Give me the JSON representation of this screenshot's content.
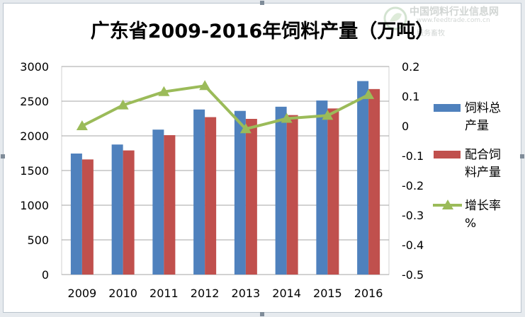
{
  "watermark": {
    "site_name": "中国饲料行业信息网",
    "url": "www.feedtrade.com.cn",
    "tagline": "服务畜牧",
    "logo": "leaf-logo"
  },
  "chart_data": {
    "type": "bar",
    "title": "广东省2009-2016年饲料产量（万吨）",
    "categories": [
      "2009",
      "2010",
      "2011",
      "2012",
      "2013",
      "2014",
      "2015",
      "2016"
    ],
    "series": [
      {
        "name": "饲料总产量",
        "type": "bar",
        "axis": "left",
        "color": "#4f81bd",
        "values": [
          1745,
          1875,
          2090,
          2380,
          2360,
          2420,
          2510,
          2790
        ]
      },
      {
        "name": "配合饲料产量",
        "type": "bar",
        "axis": "left",
        "color": "#c0504d",
        "values": [
          1660,
          1790,
          2010,
          2270,
          2245,
          2300,
          2395,
          2675
        ]
      },
      {
        "name": "增长率%",
        "type": "line",
        "axis": "right",
        "color": "#9bbb59",
        "marker": "triangle",
        "values": [
          0.0,
          0.07,
          0.115,
          0.135,
          -0.01,
          0.025,
          0.035,
          0.105
        ]
      }
    ],
    "left_axis": {
      "min": 0,
      "max": 3000,
      "step": 500,
      "ticks": [
        "0",
        "500",
        "1000",
        "1500",
        "2000",
        "2500",
        "3000"
      ]
    },
    "right_axis": {
      "min": -0.5,
      "max": 0.2,
      "step": 0.1,
      "ticks": [
        "-0.5",
        "-0.4",
        "-0.3",
        "-0.2",
        "-0.1",
        "0",
        "0.1",
        "0.2"
      ]
    },
    "legend": {
      "position": "right",
      "entries": [
        {
          "lines": [
            "饲料总",
            "产量"
          ],
          "color": "#4f81bd",
          "kind": "bar"
        },
        {
          "lines": [
            "配合饲",
            "料产量"
          ],
          "color": "#c0504d",
          "kind": "bar"
        },
        {
          "lines": [
            "增长率",
            "%"
          ],
          "color": "#9bbb59",
          "kind": "line"
        }
      ]
    },
    "grid": true
  }
}
